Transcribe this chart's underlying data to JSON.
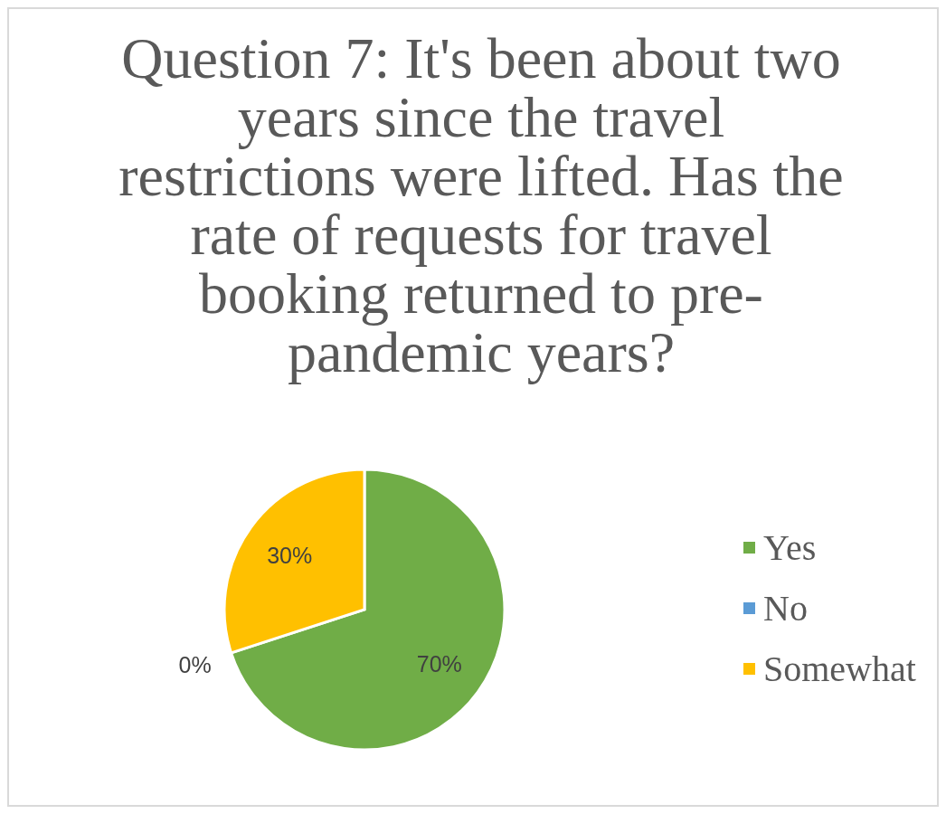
{
  "chart_data": {
    "type": "pie",
    "title": "Question 7: It's been about two years since the travel restrictions were lifted. Has the rate of requests for travel booking returned to pre-pandemic years?",
    "categories": [
      "Yes",
      "No",
      "Somewhat"
    ],
    "values": [
      70,
      0,
      30
    ],
    "colors": [
      "#70ad47",
      "#5b9bd5",
      "#ffc000"
    ],
    "value_labels": [
      "70%",
      "0%",
      "30%"
    ],
    "legend": "right"
  }
}
